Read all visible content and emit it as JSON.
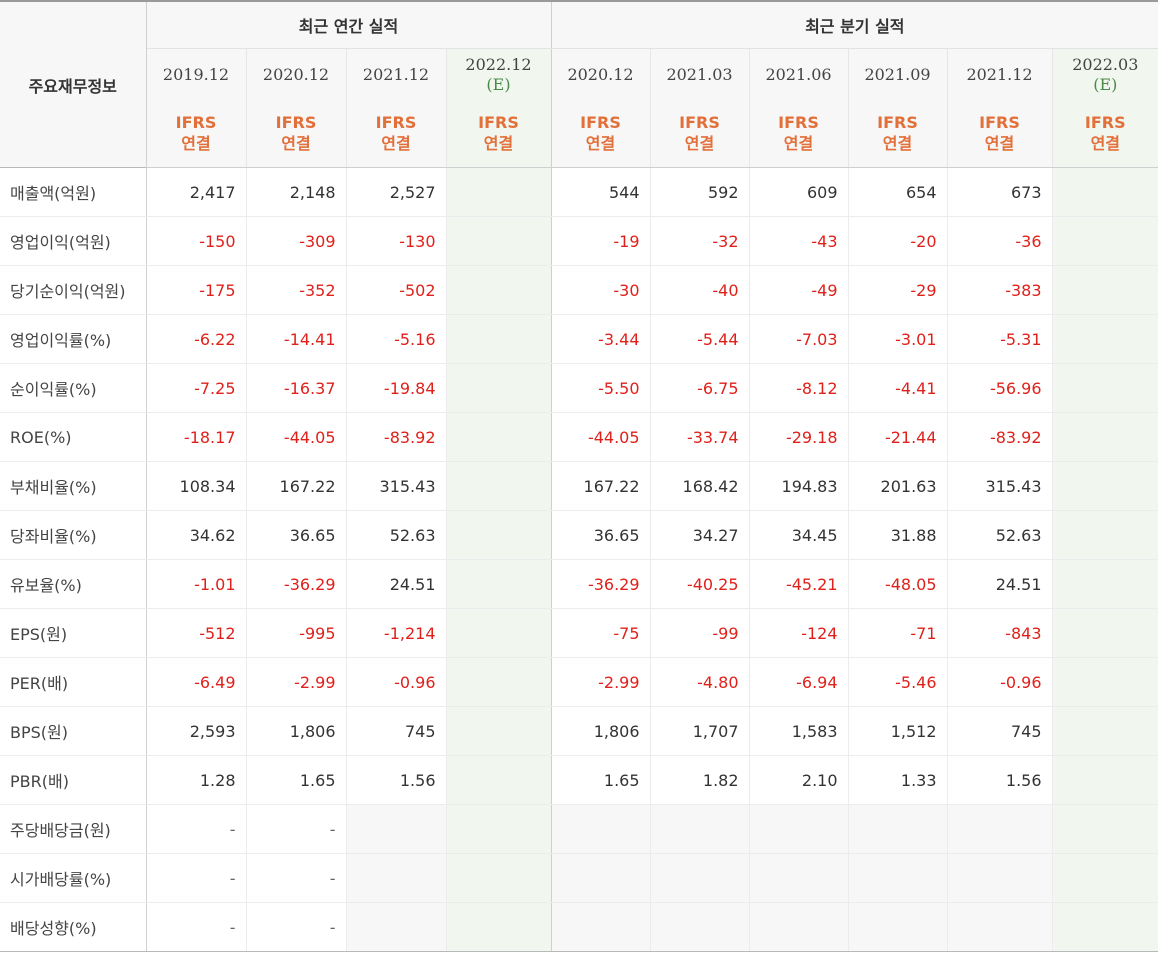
{
  "header": {
    "row_label": "주요재무정보",
    "annual_title": "최근 연간 실적",
    "quarter_title": "최근 분기 실적",
    "annual_periods": [
      {
        "period": "2019.12",
        "est": ""
      },
      {
        "period": "2020.12",
        "est": ""
      },
      {
        "period": "2021.12",
        "est": ""
      },
      {
        "period": "2022.12",
        "est": "(E)"
      }
    ],
    "quarter_periods": [
      {
        "period": "2020.12",
        "est": ""
      },
      {
        "period": "2021.03",
        "est": ""
      },
      {
        "period": "2021.06",
        "est": ""
      },
      {
        "period": "2021.09",
        "est": ""
      },
      {
        "period": "2021.12",
        "est": ""
      },
      {
        "period": "2022.03",
        "est": "(E)"
      }
    ],
    "ifrs_top": "IFRS",
    "ifrs_bottom": "연결"
  },
  "rows": [
    {
      "label": "매출액(억원)",
      "annual": [
        "2,417",
        "2,148",
        "2,527",
        ""
      ],
      "quarter": [
        "544",
        "592",
        "609",
        "654",
        "673",
        ""
      ]
    },
    {
      "label": "영업이익(억원)",
      "annual": [
        "-150",
        "-309",
        "-130",
        ""
      ],
      "quarter": [
        "-19",
        "-32",
        "-43",
        "-20",
        "-36",
        ""
      ]
    },
    {
      "label": "당기순이익(억원)",
      "annual": [
        "-175",
        "-352",
        "-502",
        ""
      ],
      "quarter": [
        "-30",
        "-40",
        "-49",
        "-29",
        "-383",
        ""
      ]
    },
    {
      "label": "영업이익률(%)",
      "annual": [
        "-6.22",
        "-14.41",
        "-5.16",
        ""
      ],
      "quarter": [
        "-3.44",
        "-5.44",
        "-7.03",
        "-3.01",
        "-5.31",
        ""
      ]
    },
    {
      "label": "순이익률(%)",
      "annual": [
        "-7.25",
        "-16.37",
        "-19.84",
        ""
      ],
      "quarter": [
        "-5.50",
        "-6.75",
        "-8.12",
        "-4.41",
        "-56.96",
        ""
      ]
    },
    {
      "label": "ROE(%)",
      "annual": [
        "-18.17",
        "-44.05",
        "-83.92",
        ""
      ],
      "quarter": [
        "-44.05",
        "-33.74",
        "-29.18",
        "-21.44",
        "-83.92",
        ""
      ]
    },
    {
      "label": "부채비율(%)",
      "annual": [
        "108.34",
        "167.22",
        "315.43",
        ""
      ],
      "quarter": [
        "167.22",
        "168.42",
        "194.83",
        "201.63",
        "315.43",
        ""
      ]
    },
    {
      "label": "당좌비율(%)",
      "annual": [
        "34.62",
        "36.65",
        "52.63",
        ""
      ],
      "quarter": [
        "36.65",
        "34.27",
        "34.45",
        "31.88",
        "52.63",
        ""
      ]
    },
    {
      "label": "유보율(%)",
      "annual": [
        "-1.01",
        "-36.29",
        "24.51",
        ""
      ],
      "quarter": [
        "-36.29",
        "-40.25",
        "-45.21",
        "-48.05",
        "24.51",
        ""
      ]
    },
    {
      "label": "EPS(원)",
      "annual": [
        "-512",
        "-995",
        "-1,214",
        ""
      ],
      "quarter": [
        "-75",
        "-99",
        "-124",
        "-71",
        "-843",
        ""
      ]
    },
    {
      "label": "PER(배)",
      "annual": [
        "-6.49",
        "-2.99",
        "-0.96",
        ""
      ],
      "quarter": [
        "-2.99",
        "-4.80",
        "-6.94",
        "-5.46",
        "-0.96",
        ""
      ]
    },
    {
      "label": "BPS(원)",
      "annual": [
        "2,593",
        "1,806",
        "745",
        ""
      ],
      "quarter": [
        "1,806",
        "1,707",
        "1,583",
        "1,512",
        "745",
        ""
      ]
    },
    {
      "label": "PBR(배)",
      "annual": [
        "1.28",
        "1.65",
        "1.56",
        ""
      ],
      "quarter": [
        "1.65",
        "1.82",
        "2.10",
        "1.33",
        "1.56",
        ""
      ]
    },
    {
      "label": "주당배당금(원)",
      "annual": [
        "-",
        "-",
        "",
        ""
      ],
      "quarter": [
        "",
        "",
        "",
        "",
        "",
        ""
      ]
    },
    {
      "label": "시가배당률(%)",
      "annual": [
        "-",
        "-",
        "",
        ""
      ],
      "quarter": [
        "",
        "",
        "",
        "",
        "",
        ""
      ]
    },
    {
      "label": "배당성향(%)",
      "annual": [
        "-",
        "-",
        "",
        ""
      ],
      "quarter": [
        "",
        "",
        "",
        "",
        "",
        ""
      ]
    }
  ],
  "colors": {
    "negative": "#e0201a",
    "ifrs": "#e2703a",
    "estimate_bg": "#f1f6ee"
  }
}
